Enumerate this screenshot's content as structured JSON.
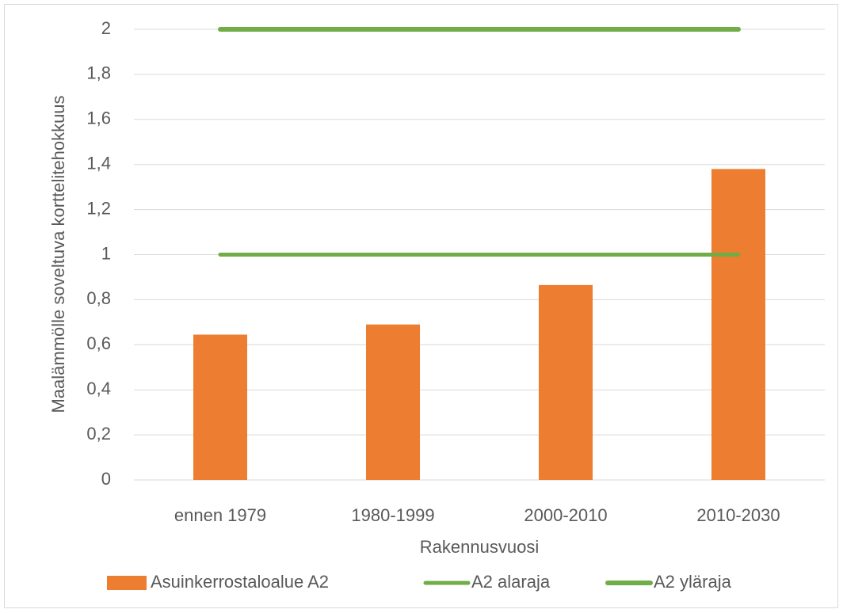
{
  "chart_data": {
    "type": "bar",
    "x_label": "Rakennusvuosi",
    "y_label": "Maalämmölle soveltuva korttelitehokkuus",
    "categories": [
      "ennen 1979",
      "1980-1999",
      "2000-2010",
      "2010-2030"
    ],
    "series": [
      {
        "name": "Asuinkerrostaloalue A2",
        "type": "bar",
        "color": "#ed7d31",
        "values": [
          0.645,
          0.69,
          0.865,
          1.38
        ]
      },
      {
        "name": "A2 alaraja",
        "type": "line",
        "color": "#70ad47",
        "values": [
          1,
          1,
          1,
          1
        ]
      },
      {
        "name": "A2 yläraja",
        "type": "line",
        "color": "#70ad47",
        "values": [
          2,
          2,
          2,
          2
        ]
      }
    ],
    "ylim": [
      0,
      2
    ],
    "yticks": [
      0,
      {
        "value": 0.2,
        "label": "0,2"
      },
      {
        "value": 0.4,
        "label": "0,4"
      },
      {
        "value": 0.6,
        "label": "0,6"
      },
      {
        "value": 0.8,
        "label": "0,8"
      },
      1,
      {
        "value": 1.2,
        "label": "1,2"
      },
      {
        "value": 1.4,
        "label": "1,4"
      },
      {
        "value": 1.6,
        "label": "1,6"
      },
      {
        "value": 1.8,
        "label": "1,8"
      },
      2
    ],
    "grid": true,
    "legend": "bottom"
  }
}
